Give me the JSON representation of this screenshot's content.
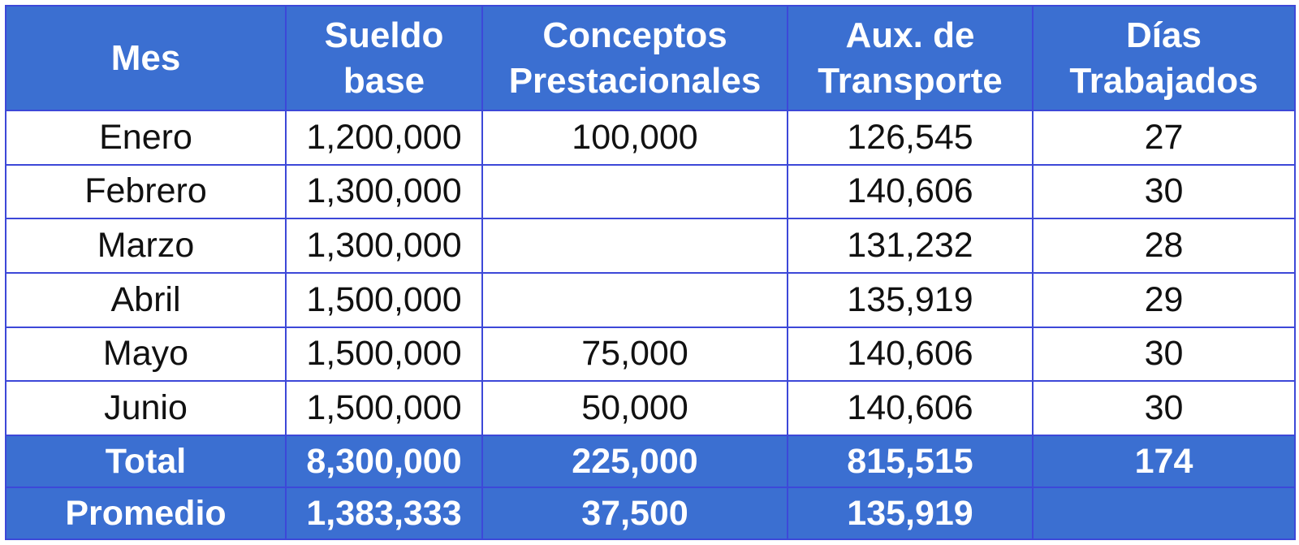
{
  "headers": [
    "Mes",
    "Sueldo base",
    "Conceptos Prestacionales",
    "Aux. de Transporte",
    "Días Trabajados"
  ],
  "rows": [
    [
      "Enero",
      "1,200,000",
      "100,000",
      "126,545",
      "27"
    ],
    [
      "Febrero",
      "1,300,000",
      "",
      "140,606",
      "30"
    ],
    [
      "Marzo",
      "1,300,000",
      "",
      "131,232",
      "28"
    ],
    [
      "Abril",
      "1,500,000",
      "",
      "135,919",
      "29"
    ],
    [
      "Mayo",
      "1,500,000",
      "75,000",
      "140,606",
      "30"
    ],
    [
      "Junio",
      "1,500,000",
      "50,000",
      "140,606",
      "30"
    ]
  ],
  "total": [
    "Total",
    "8,300,000",
    "225,000",
    "815,515",
    "174"
  ],
  "promedio": [
    "Promedio",
    "1,383,333",
    "37,500",
    "135,919",
    ""
  ],
  "colors": {
    "header_bg": "#3b6fd1",
    "border": "#3d48d8",
    "header_text": "#ffffff"
  }
}
